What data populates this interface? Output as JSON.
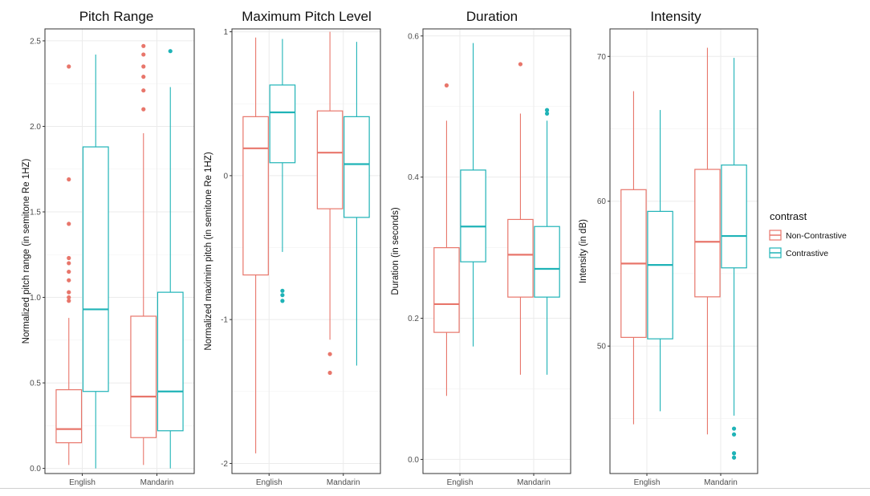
{
  "colors": {
    "non_contrastive": "#e8766b",
    "contrastive": "#1fb3b7",
    "grid": "#ebebeb",
    "panel_border": "#333333"
  },
  "legend": {
    "title": "contrast",
    "items": [
      {
        "label": "Non-Contrastive",
        "color_key": "non_contrastive"
      },
      {
        "label": "Contrastive",
        "color_key": "contrastive"
      }
    ]
  },
  "chart_data": [
    {
      "type": "box",
      "title": "Pitch Range",
      "ylabel": "Normalized pitch range (in semitone Re 1HZ)",
      "xlabel": "",
      "categories": [
        "English",
        "Mandarin"
      ],
      "ylim": [
        -0.03,
        2.57
      ],
      "yticks": [
        0.0,
        0.5,
        1.0,
        1.5,
        2.0,
        2.5
      ],
      "ytick_labels": [
        "0.0",
        "0.5",
        "1.0",
        "1.5",
        "2.0",
        "2.5"
      ],
      "series": [
        {
          "name": "Non-Contrastive",
          "color_key": "non_contrastive",
          "boxes": [
            {
              "category": "English",
              "lower_whisker": 0.02,
              "q1": 0.15,
              "median": 0.23,
              "q3": 0.46,
              "upper_whisker": 0.88,
              "outliers": [
                0.98,
                1.0,
                1.03,
                1.1,
                1.15,
                1.2,
                1.23,
                1.43,
                1.69,
                2.35
              ]
            },
            {
              "category": "Mandarin",
              "lower_whisker": 0.02,
              "q1": 0.18,
              "median": 0.42,
              "q3": 0.89,
              "upper_whisker": 1.96,
              "outliers": [
                2.1,
                2.21,
                2.29,
                2.35,
                2.42,
                2.47
              ]
            }
          ]
        },
        {
          "name": "Contrastive",
          "color_key": "contrastive",
          "boxes": [
            {
              "category": "English",
              "lower_whisker": 0.0,
              "q1": 0.45,
              "median": 0.93,
              "q3": 1.88,
              "upper_whisker": 2.42,
              "outliers": []
            },
            {
              "category": "Mandarin",
              "lower_whisker": 0.0,
              "q1": 0.22,
              "median": 0.45,
              "q3": 1.03,
              "upper_whisker": 2.23,
              "outliers": [
                2.44
              ]
            }
          ]
        }
      ]
    },
    {
      "type": "box",
      "title": "Maximum Pitch Level",
      "ylabel": "Normalized maximim pitch (in semitone Re 1HZ)",
      "xlabel": "",
      "categories": [
        "English",
        "Mandarin"
      ],
      "ylim": [
        -2.07,
        1.02
      ],
      "yticks": [
        -2,
        -1,
        0,
        1
      ],
      "ytick_labels": [
        "-2",
        "-1",
        "0",
        "1"
      ],
      "series": [
        {
          "name": "Non-Contrastive",
          "color_key": "non_contrastive",
          "boxes": [
            {
              "category": "English",
              "lower_whisker": -1.93,
              "q1": -0.69,
              "median": 0.19,
              "q3": 0.41,
              "upper_whisker": 0.96,
              "outliers": []
            },
            {
              "category": "Mandarin",
              "lower_whisker": -1.14,
              "q1": -0.23,
              "median": 0.16,
              "q3": 0.45,
              "upper_whisker": 1.0,
              "outliers": [
                -1.24,
                -1.37
              ]
            }
          ]
        },
        {
          "name": "Contrastive",
          "color_key": "contrastive",
          "boxes": [
            {
              "category": "English",
              "lower_whisker": -0.53,
              "q1": 0.09,
              "median": 0.44,
              "q3": 0.63,
              "upper_whisker": 0.95,
              "outliers": [
                -0.8,
                -0.83,
                -0.87
              ]
            },
            {
              "category": "Mandarin",
              "lower_whisker": -1.32,
              "q1": -0.29,
              "median": 0.08,
              "q3": 0.41,
              "upper_whisker": 0.93,
              "outliers": []
            }
          ]
        }
      ]
    },
    {
      "type": "box",
      "title": "Duration",
      "ylabel": "Duration (in seconds)",
      "xlabel": "",
      "categories": [
        "English",
        "Mandarin"
      ],
      "ylim": [
        -0.02,
        0.61
      ],
      "yticks": [
        0.0,
        0.2,
        0.4,
        0.6
      ],
      "ytick_labels": [
        "0.0",
        "0.2",
        "0.4",
        "0.6"
      ],
      "series": [
        {
          "name": "Non-Contrastive",
          "color_key": "non_contrastive",
          "boxes": [
            {
              "category": "English",
              "lower_whisker": 0.09,
              "q1": 0.18,
              "median": 0.22,
              "q3": 0.3,
              "upper_whisker": 0.48,
              "outliers": [
                0.53
              ]
            },
            {
              "category": "Mandarin",
              "lower_whisker": 0.12,
              "q1": 0.23,
              "median": 0.29,
              "q3": 0.34,
              "upper_whisker": 0.49,
              "outliers": [
                0.56
              ]
            }
          ]
        },
        {
          "name": "Contrastive",
          "color_key": "contrastive",
          "boxes": [
            {
              "category": "English",
              "lower_whisker": 0.16,
              "q1": 0.28,
              "median": 0.33,
              "q3": 0.41,
              "upper_whisker": 0.59,
              "outliers": []
            },
            {
              "category": "Mandarin",
              "lower_whisker": 0.12,
              "q1": 0.23,
              "median": 0.27,
              "q3": 0.33,
              "upper_whisker": 0.48,
              "outliers": [
                0.49,
                0.495
              ]
            }
          ]
        }
      ]
    },
    {
      "type": "box",
      "title": "Intensity",
      "ylabel": "Intensity (in dB)",
      "xlabel": "",
      "categories": [
        "English",
        "Mandarin"
      ],
      "ylim": [
        41.2,
        71.9
      ],
      "yticks": [
        50,
        60,
        70
      ],
      "ytick_labels": [
        "50",
        "60",
        "70"
      ],
      "series": [
        {
          "name": "Non-Contrastive",
          "color_key": "non_contrastive",
          "boxes": [
            {
              "category": "English",
              "lower_whisker": 44.6,
              "q1": 50.6,
              "median": 55.7,
              "q3": 60.8,
              "upper_whisker": 67.6,
              "outliers": []
            },
            {
              "category": "Mandarin",
              "lower_whisker": 43.9,
              "q1": 53.4,
              "median": 57.2,
              "q3": 62.2,
              "upper_whisker": 70.6,
              "outliers": []
            }
          ]
        },
        {
          "name": "Contrastive",
          "color_key": "contrastive",
          "boxes": [
            {
              "category": "English",
              "lower_whisker": 45.5,
              "q1": 50.5,
              "median": 55.6,
              "q3": 59.3,
              "upper_whisker": 66.3,
              "outliers": []
            },
            {
              "category": "Mandarin",
              "lower_whisker": 45.2,
              "q1": 55.4,
              "median": 57.6,
              "q3": 62.5,
              "upper_whisker": 69.9,
              "outliers": [
                42.3,
                42.6,
                43.9,
                44.3
              ]
            }
          ]
        }
      ]
    }
  ]
}
